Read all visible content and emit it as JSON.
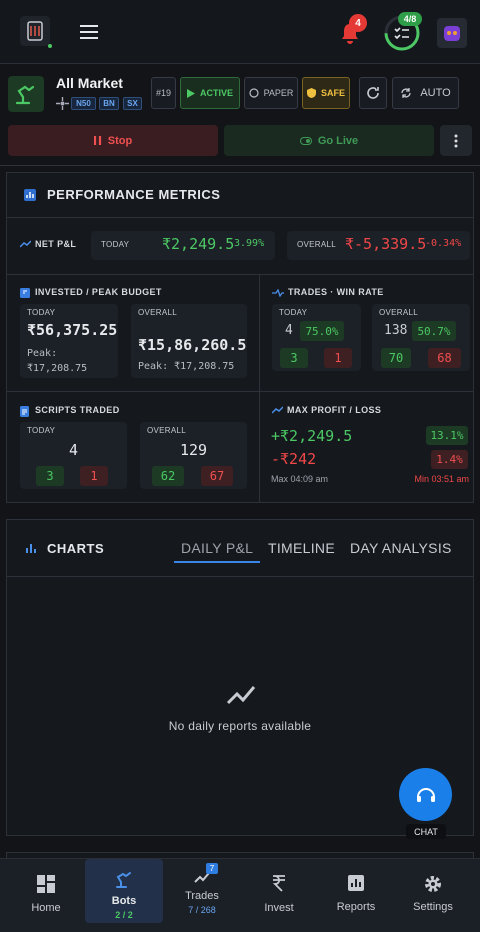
{
  "header": {
    "notification_count": "4",
    "progress": "4/8"
  },
  "bot": {
    "name": "All Market",
    "tags": [
      "N50",
      "BN",
      "SX"
    ],
    "id": "#19",
    "status": "ACTIVE",
    "mode": "PAPER",
    "risk": "SAFE",
    "auto": "AUTO"
  },
  "actions": {
    "stop": "Stop",
    "go_live": "Go Live"
  },
  "performance": {
    "title": "PERFORMANCE METRICS",
    "net_pnl": {
      "label": "NET P&L",
      "today_label": "TODAY",
      "today_value": "₹2,249.5",
      "today_pct": "3.99%",
      "overall_label": "OVERALL",
      "overall_value": "₹-5,339.5",
      "overall_pct": "-0.34%"
    },
    "invested": {
      "title": "INVESTED / PEAK BUDGET",
      "today_label": "TODAY",
      "today_value": "₹56,375.25",
      "today_peak": "Peak: ₹17,208.75",
      "overall_label": "OVERALL",
      "overall_value": "₹15,86,260.5",
      "overall_peak": "Peak: ₹17,208.75"
    },
    "trades": {
      "title": "TRADES · WIN RATE",
      "today_label": "TODAY",
      "today_count": "4",
      "today_win_rate": "75.0%",
      "today_wins": "3",
      "today_losses": "1",
      "overall_label": "OVERALL",
      "overall_count": "138",
      "overall_win_rate": "50.7%",
      "overall_wins": "70",
      "overall_losses": "68"
    },
    "scripts": {
      "title": "SCRIPTS TRADED",
      "today_label": "TODAY",
      "today_count": "4",
      "today_wins": "3",
      "today_losses": "1",
      "overall_label": "OVERALL",
      "overall_count": "129",
      "overall_wins": "62",
      "overall_losses": "67"
    },
    "max": {
      "title": "MAX PROFIT / LOSS",
      "profit": "+₹2,249.5",
      "profit_pct": "13.1%",
      "loss": "-₹242",
      "loss_pct": "1.4%",
      "max_time": "Max 04:09 am",
      "min_time": "Min 03:51 am"
    }
  },
  "charts": {
    "title": "CHARTS",
    "tabs": [
      "DAILY P&L",
      "TIMELINE",
      "DAY ANALYSIS"
    ],
    "empty": "No daily reports available",
    "chat": "CHAT"
  },
  "nav": [
    {
      "label": "Home"
    },
    {
      "label": "Bots",
      "sub": "2 / 2"
    },
    {
      "label": "Trades",
      "badge": "7",
      "sub": "7 / 268"
    },
    {
      "label": "Invest"
    },
    {
      "label": "Reports"
    },
    {
      "label": "Settings"
    }
  ]
}
